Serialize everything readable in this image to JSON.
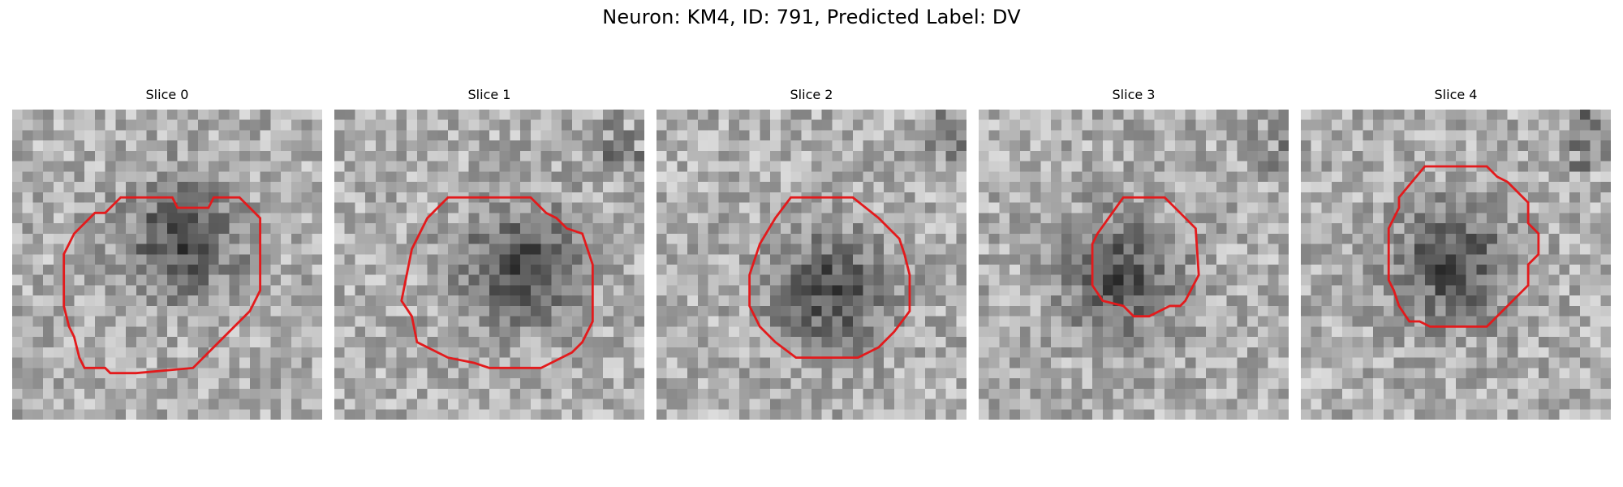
{
  "figure": {
    "title": "Neuron: KM4, ID: 791, Predicted Label: DV",
    "grid": 30,
    "contour_color": "#e31a1c"
  },
  "panels": [
    {
      "title": "Slice 0",
      "dark_center": [
        16.5,
        12.5
      ],
      "contour": [
        [
          10.5,
          8.5
        ],
        [
          15.5,
          8.5
        ],
        [
          16,
          9.5
        ],
        [
          19,
          9.5
        ],
        [
          19.5,
          8.5
        ],
        [
          22,
          8.5
        ],
        [
          24,
          10.5
        ],
        [
          24,
          17.5
        ],
        [
          23,
          19.5
        ],
        [
          17.5,
          25
        ],
        [
          12,
          25.5
        ],
        [
          9.5,
          25.5
        ],
        [
          9,
          25
        ],
        [
          7,
          25
        ],
        [
          6.5,
          24
        ],
        [
          6,
          22
        ],
        [
          5.5,
          21
        ],
        [
          5,
          19
        ],
        [
          5,
          14
        ],
        [
          6,
          12
        ],
        [
          8,
          10
        ],
        [
          9,
          10
        ]
      ]
    },
    {
      "title": "Slice 1",
      "dark_center": [
        18,
        15
      ],
      "contour": [
        [
          11,
          8.5
        ],
        [
          19,
          8.5
        ],
        [
          20.5,
          10
        ],
        [
          21.5,
          10.5
        ],
        [
          22.5,
          11.5
        ],
        [
          24,
          12
        ],
        [
          24.5,
          13.5
        ],
        [
          25,
          15
        ],
        [
          25,
          20.5
        ],
        [
          24,
          22.5
        ],
        [
          23,
          23.5
        ],
        [
          22,
          24
        ],
        [
          20,
          25
        ],
        [
          15,
          25
        ],
        [
          13.5,
          24.5
        ],
        [
          11,
          24
        ],
        [
          8,
          22.5
        ],
        [
          7.5,
          20
        ],
        [
          6.5,
          18.5
        ],
        [
          7,
          16
        ],
        [
          7.5,
          13.5
        ],
        [
          9,
          10.5
        ]
      ]
    },
    {
      "title": "Slice 2",
      "dark_center": [
        17,
        17.5
      ],
      "contour": [
        [
          13,
          8.5
        ],
        [
          19,
          8.5
        ],
        [
          21.5,
          10.5
        ],
        [
          23.5,
          12.5
        ],
        [
          24,
          14
        ],
        [
          24.5,
          16
        ],
        [
          24.5,
          19.5
        ],
        [
          23,
          21.5
        ],
        [
          21.5,
          23
        ],
        [
          19.5,
          24
        ],
        [
          13.5,
          24
        ],
        [
          11.5,
          22.5
        ],
        [
          10,
          21
        ],
        [
          9,
          19
        ],
        [
          9,
          16
        ],
        [
          10,
          13
        ],
        [
          11.5,
          10.5
        ]
      ]
    },
    {
      "title": "Slice 3",
      "dark_center": [
        14,
        16
      ],
      "contour": [
        [
          14,
          8.5
        ],
        [
          18,
          8.5
        ],
        [
          21,
          11.5
        ],
        [
          21.3,
          16
        ],
        [
          20,
          18.5
        ],
        [
          19.5,
          19
        ],
        [
          18.5,
          19
        ],
        [
          17.5,
          19.5
        ],
        [
          16.5,
          20
        ],
        [
          15,
          20
        ],
        [
          14,
          19
        ],
        [
          12,
          18.5
        ],
        [
          11,
          17
        ],
        [
          11,
          14
        ],
        [
          11,
          13
        ],
        [
          11.5,
          12
        ]
      ]
    },
    {
      "title": "Slice 4",
      "dark_center": [
        14.5,
        15
      ],
      "contour": [
        [
          12,
          5.5
        ],
        [
          18,
          5.5
        ],
        [
          19,
          6.5
        ],
        [
          20,
          7
        ],
        [
          22,
          9
        ],
        [
          22,
          11
        ],
        [
          23,
          12
        ],
        [
          23,
          14
        ],
        [
          22,
          15
        ],
        [
          22,
          17
        ],
        [
          20,
          19
        ],
        [
          18.5,
          20.5
        ],
        [
          18,
          21
        ],
        [
          16,
          21
        ],
        [
          12.5,
          21
        ],
        [
          11.5,
          20.5
        ],
        [
          10.5,
          20.5
        ],
        [
          9.5,
          19
        ],
        [
          9,
          17.5
        ],
        [
          8.5,
          16.5
        ],
        [
          8.5,
          11.5
        ],
        [
          9.5,
          9.5
        ],
        [
          9.5,
          8.5
        ]
      ]
    }
  ]
}
